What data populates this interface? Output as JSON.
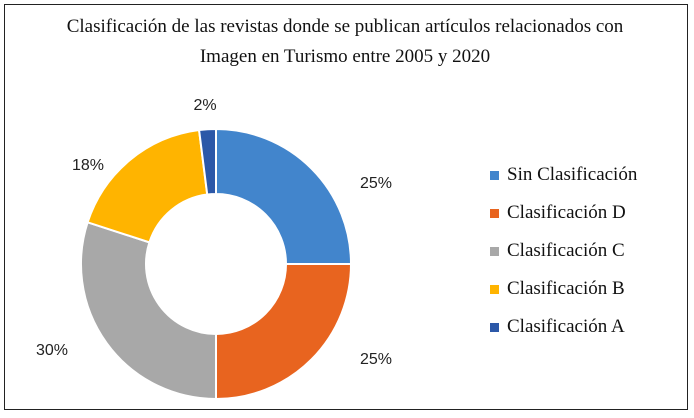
{
  "chart_data": {
    "type": "pie",
    "variant": "donut",
    "title_lines": [
      "Clasificación de las revistas donde se publican artículos relacionados con",
      "Imagen en Turismo entre 2005 y 2020"
    ],
    "categories": [
      "Sin Clasificación",
      "Clasificación D",
      "Clasificación C",
      "Clasificación B",
      "Clasificación A"
    ],
    "values": [
      25,
      25,
      30,
      18,
      2
    ],
    "data_labels": [
      "25%",
      "25%",
      "30%",
      "18%",
      "2%"
    ],
    "colors": [
      "#4285cc",
      "#e8641f",
      "#a8a8a8",
      "#ffb400",
      "#2c58a8"
    ],
    "legend_position": "right",
    "unit": "%"
  }
}
